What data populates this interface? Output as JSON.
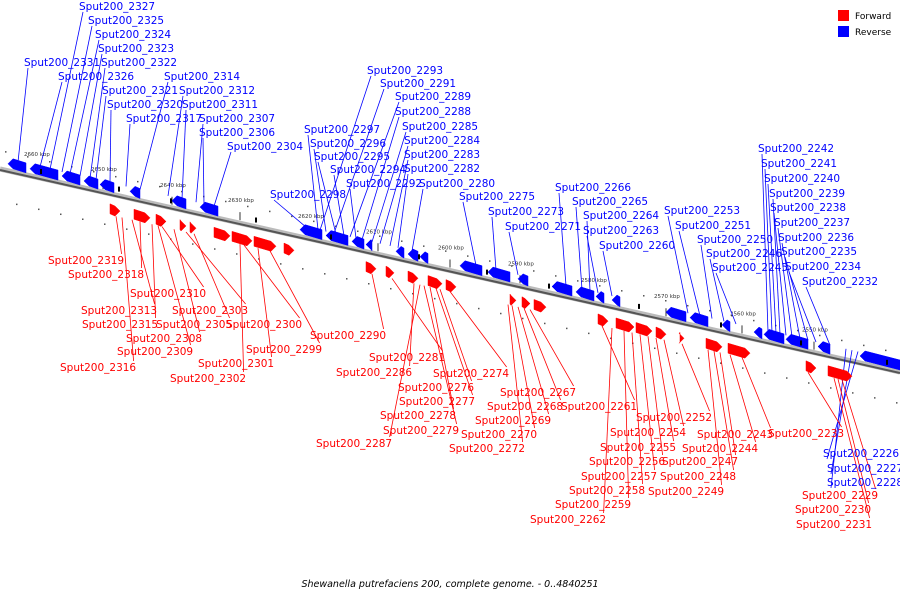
{
  "caption": "Shewanella putrefaciens 200, complete genome. - 0..4840251",
  "legend": [
    {
      "label": "Forward",
      "color": "#ff0000"
    },
    {
      "label": "Reverse",
      "color": "#0000ff"
    }
  ],
  "colors": {
    "forward": "#ff0000",
    "reverse": "#0000ff",
    "backbone": "#555555"
  },
  "ticks": [
    "2660 kbp",
    "2650 kbp",
    "2640 kbp",
    "2630 kbp",
    "2620 kbp",
    "2610 kbp",
    "2600 kbp",
    "2590 kbp",
    "2580 kbp",
    "2570 kbp",
    "2560 kbp",
    "2550 kbp"
  ],
  "reverse_genes": [
    "Sput200_2327",
    "Sput200_2325",
    "Sput200_2324",
    "Sput200_2323",
    "Sput200_2322",
    "Sput200_2331",
    "Sput200_2326",
    "Sput200_2314",
    "Sput200_2321",
    "Sput200_2312",
    "Sput200_2320",
    "Sput200_2311",
    "Sput200_2317",
    "Sput200_2307",
    "Sput200_2306",
    "Sput200_2304",
    "Sput200_2293",
    "Sput200_2291",
    "Sput200_2289",
    "Sput200_2288",
    "Sput200_2285",
    "Sput200_2297",
    "Sput200_2284",
    "Sput200_2296",
    "Sput200_2283",
    "Sput200_2295",
    "Sput200_2282",
    "Sput200_2294",
    "Sput200_2292",
    "Sput200_2280",
    "Sput200_2298",
    "Sput200_2275",
    "Sput200_2273",
    "Sput200_2271",
    "Sput200_2266",
    "Sput200_2265",
    "Sput200_2264",
    "Sput200_2263",
    "Sput200_2260",
    "Sput200_2253",
    "Sput200_2251",
    "Sput200_2250",
    "Sput200_2246",
    "Sput200_2245",
    "Sput200_2242",
    "Sput200_2241",
    "Sput200_2240",
    "Sput200_2239",
    "Sput200_2238",
    "Sput200_2237",
    "Sput200_2236",
    "Sput200_2235",
    "Sput200_2234",
    "Sput200_2232",
    "Sput200_2226",
    "Sput200_2227",
    "Sput200_2228"
  ],
  "forward_genes": [
    "Sput200_2319",
    "Sput200_2318",
    "Sput200_2310",
    "Sput200_2313",
    "Sput200_2303",
    "Sput200_2315",
    "Sput200_2305",
    "Sput200_2300",
    "Sput200_2308",
    "Sput200_2299",
    "Sput200_2309",
    "Sput200_2301",
    "Sput200_2316",
    "Sput200_2302",
    "Sput200_2290",
    "Sput200_2281",
    "Sput200_2286",
    "Sput200_2276",
    "Sput200_2274",
    "Sput200_2277",
    "Sput200_2278",
    "Sput200_2279",
    "Sput200_2287",
    "Sput200_2267",
    "Sput200_2268",
    "Sput200_2269",
    "Sput200_2270",
    "Sput200_2272",
    "Sput200_2261",
    "Sput200_2252",
    "Sput200_2254",
    "Sput200_2255",
    "Sput200_2256",
    "Sput200_2257",
    "Sput200_2258",
    "Sput200_2259",
    "Sput200_2262",
    "Sput200_2243",
    "Sput200_2244",
    "Sput200_2247",
    "Sput200_2248",
    "Sput200_2249",
    "Sput200_2233",
    "Sput200_2229",
    "Sput200_2230",
    "Sput200_2231"
  ]
}
